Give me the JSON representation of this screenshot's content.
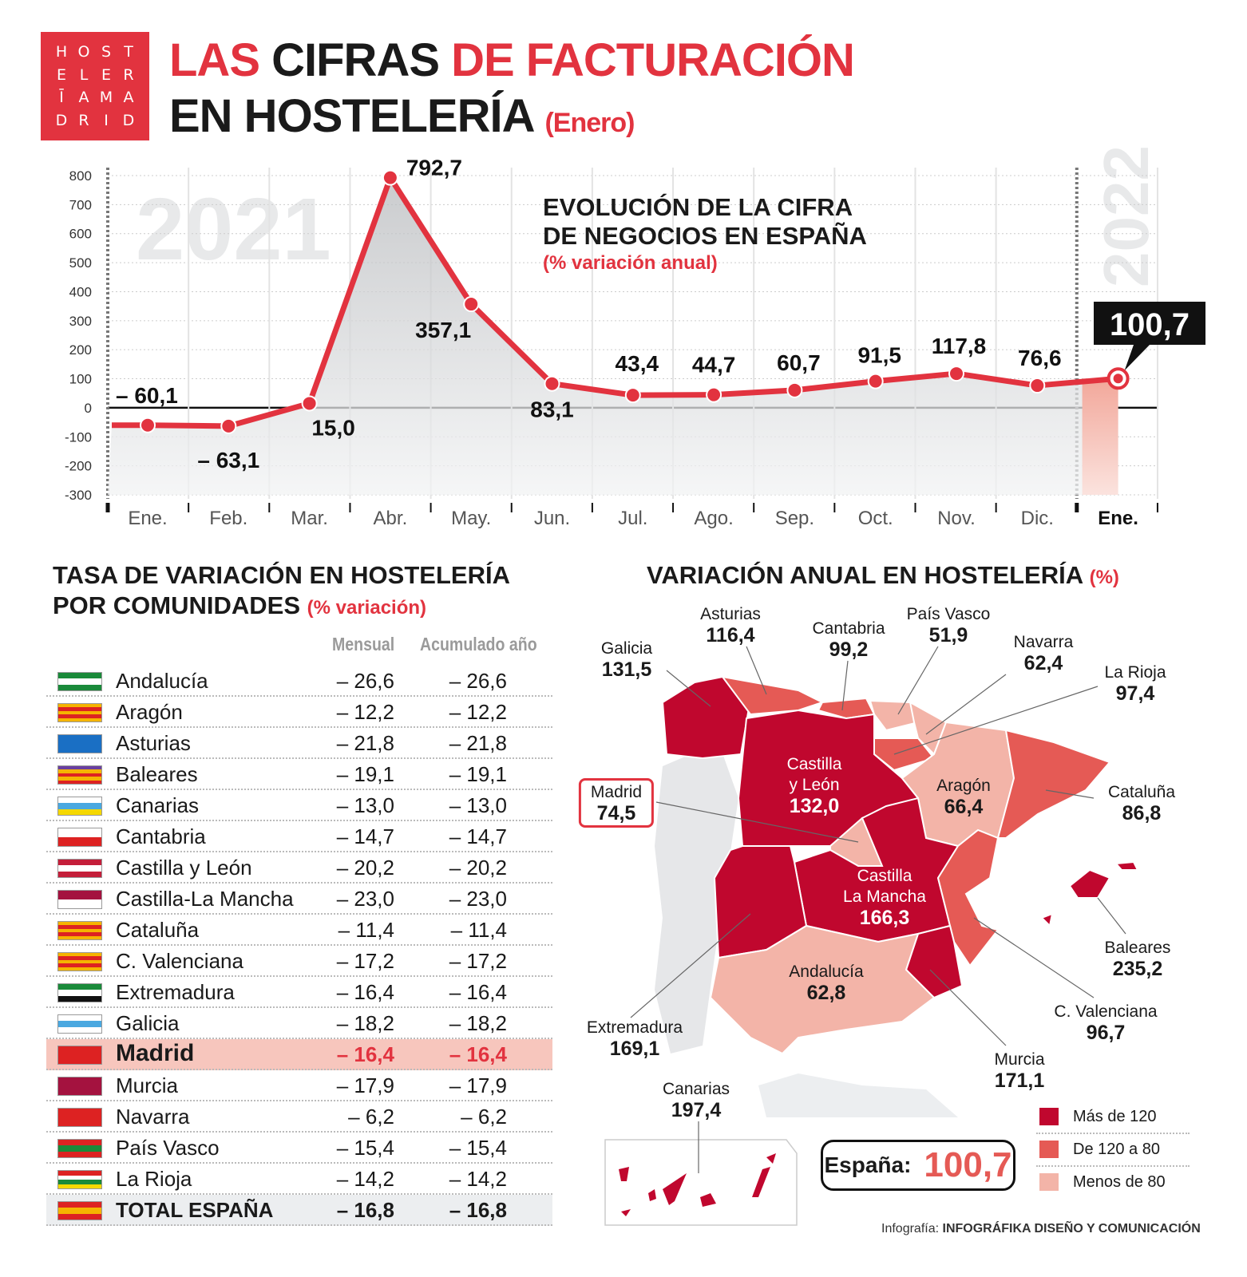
{
  "logo": {
    "letters": [
      "H",
      "O",
      "S",
      "T",
      "E",
      "L",
      "E",
      "R",
      "Ī",
      "A",
      "M",
      "A",
      "D",
      "R",
      "I",
      "D"
    ],
    "text": "HOSTELERĪA MADRID"
  },
  "header": {
    "line1": [
      {
        "text": "LAS ",
        "accent": true
      },
      {
        "text": "CIFRAS ",
        "accent": false
      },
      {
        "text": "DE FACTURACIÓN",
        "accent": true
      }
    ],
    "line2": "EN HOSTELERÍA",
    "line2_suffix": "(Enero)"
  },
  "colors": {
    "accent": "#e2333f",
    "map_high": "#c0072e",
    "map_mid": "#e55a55",
    "map_low": "#f3b4a8",
    "area": "#d8d9db",
    "line": "#e2333f"
  },
  "chart_data": {
    "type": "line",
    "title": "EVOLUCIÓN DE LA CIFRA DE NEGOCIOS EN ESPAÑA",
    "title_lines": [
      "EVOLUCIÓN DE LA CIFRA",
      "DE NEGOCIOS EN ESPAÑA"
    ],
    "subtitle": "(% variación anual)",
    "year_labels": [
      "2021",
      "2022"
    ],
    "categories": [
      "Ene.",
      "Feb.",
      "Mar.",
      "Abr.",
      "May.",
      "Jun.",
      "Jul.",
      "Ago.",
      "Sep.",
      "Oct.",
      "Nov.",
      "Dic.",
      "Ene."
    ],
    "values": [
      -60.1,
      -63.1,
      15.0,
      792.7,
      357.1,
      83.1,
      43.4,
      44.7,
      60.7,
      91.5,
      117.8,
      76.6,
      100.7
    ],
    "data_labels": [
      "– 60,1",
      "– 63,1",
      "15,0",
      "792,7",
      "357,1",
      "83,1",
      "43,4",
      "44,7",
      "60,7",
      "91,5",
      "117,8",
      "76,6",
      "100,7"
    ],
    "yticks": [
      "800",
      "700",
      "600",
      "500",
      "400",
      "300",
      "200",
      "100",
      "0",
      "-100",
      "-200",
      "-300"
    ],
    "ylim": [
      -300,
      800
    ],
    "grid": true,
    "highlight_last": true
  },
  "table": {
    "title_lines": [
      "TASA DE VARIACIÓN EN HOSTELERÍA",
      "POR COMUNIDADES"
    ],
    "title_suffix": "(% variación)",
    "columns": [
      "Mensual",
      "Acumulado año"
    ],
    "rows": [
      {
        "name": "Andalucía",
        "mensual": "– 26,6",
        "acumulado": "– 26,6",
        "flag": [
          "#1a8a3a",
          "#fff",
          "#1a8a3a"
        ]
      },
      {
        "name": "Aragón",
        "mensual": "– 12,2",
        "acumulado": "– 12,2",
        "flag": [
          "#f5b400",
          "#d22",
          "#f5b400",
          "#d22",
          "#f5b400"
        ]
      },
      {
        "name": "Asturias",
        "mensual": "– 21,8",
        "acumulado": "– 21,8",
        "flag": [
          "#1a6fc4",
          "#1a6fc4"
        ]
      },
      {
        "name": "Baleares",
        "mensual": "– 19,1",
        "acumulado": "– 19,1",
        "flag": [
          "#6a3fa0",
          "#f5b400",
          "#d22",
          "#f5b400",
          "#d22"
        ]
      },
      {
        "name": "Canarias",
        "mensual": "– 13,0",
        "acumulado": "– 13,0",
        "flag": [
          "#fff",
          "#4aa8e0",
          "#f5d800"
        ]
      },
      {
        "name": "Cantabria",
        "mensual": "– 14,7",
        "acumulado": "– 14,7",
        "flag": [
          "#fff",
          "#d22"
        ]
      },
      {
        "name": "Castilla y León",
        "mensual": "– 20,2",
        "acumulado": "– 20,2",
        "flag": [
          "#c41e3a",
          "#fff",
          "#c41e3a"
        ]
      },
      {
        "name": "Castilla-La Mancha",
        "mensual": "– 23,0",
        "acumulado": "– 23,0",
        "flag": [
          "#a4123f",
          "#fff"
        ]
      },
      {
        "name": "Cataluña",
        "mensual": "– 11,4",
        "acumulado": "– 11,4",
        "flag": [
          "#f5b400",
          "#d22",
          "#f5b400",
          "#d22",
          "#f5b400"
        ]
      },
      {
        "name": "C. Valenciana",
        "mensual": "– 17,2",
        "acumulado": "– 17,2",
        "flag": [
          "#f5b400",
          "#d22",
          "#f5b400",
          "#d22",
          "#f5b400"
        ]
      },
      {
        "name": "Extremadura",
        "mensual": "– 16,4",
        "acumulado": "– 16,4",
        "flag": [
          "#1a8a3a",
          "#fff",
          "#111"
        ]
      },
      {
        "name": "Galicia",
        "mensual": "– 18,2",
        "acumulado": "– 18,2",
        "flag": [
          "#fff",
          "#4aa8e0",
          "#fff"
        ]
      },
      {
        "name": "Madrid",
        "mensual": "– 16,4",
        "acumulado": "– 16,4",
        "flag": [
          "#d22",
          "#d22"
        ],
        "highlight": true
      },
      {
        "name": "Murcia",
        "mensual": "– 17,9",
        "acumulado": "– 17,9",
        "flag": [
          "#a4123f",
          "#a4123f"
        ]
      },
      {
        "name": "Navarra",
        "mensual": "– 6,2",
        "acumulado": "– 6,2",
        "flag": [
          "#d22",
          "#d22"
        ]
      },
      {
        "name": "País Vasco",
        "mensual": "– 15,4",
        "acumulado": "– 15,4",
        "flag": [
          "#d22",
          "#1a8a3a",
          "#d22"
        ]
      },
      {
        "name": "La Rioja",
        "mensual": "– 14,2",
        "acumulado": "– 14,2",
        "flag": [
          "#d22",
          "#fff",
          "#1a8a3a",
          "#f5d800"
        ]
      },
      {
        "name": "TOTAL ESPAÑA",
        "mensual": "– 16,8",
        "acumulado": "– 16,8",
        "flag": [
          "#d22",
          "#f5b400",
          "#d22"
        ],
        "total": true
      }
    ]
  },
  "map": {
    "title": "VARIACIÓN ANUAL EN HOSTELERÍA",
    "title_suffix": "(%)",
    "regions": [
      {
        "name": "Asturias",
        "value": "116,4"
      },
      {
        "name": "Cantabria",
        "value": "99,2"
      },
      {
        "name": "País Vasco",
        "value": "51,9"
      },
      {
        "name": "Galicia",
        "value": "131,5"
      },
      {
        "name": "Navarra",
        "value": "62,4"
      },
      {
        "name": "La Rioja",
        "value": "97,4"
      },
      {
        "name": "Castilla",
        "name2": "y León",
        "value": "132,0"
      },
      {
        "name": "Madrid",
        "value": "74,5"
      },
      {
        "name": "Aragón",
        "value": "66,4"
      },
      {
        "name": "Cataluña",
        "value": "86,8"
      },
      {
        "name": "Castilla",
        "name2": "La Mancha",
        "value": "166,3"
      },
      {
        "name": "Baleares",
        "value": "235,2"
      },
      {
        "name": "Andalucía",
        "value": "62,8"
      },
      {
        "name": "C. Valenciana",
        "value": "96,7"
      },
      {
        "name": "Extremadura",
        "value": "169,1"
      },
      {
        "name": "Murcia",
        "value": "171,1"
      },
      {
        "name": "Canarias",
        "value": "197,4"
      }
    ],
    "spain_label": "España:",
    "spain_value": "100,7",
    "legend": [
      "Más de 120",
      "De 120 a 80",
      "Menos de 80"
    ]
  },
  "credit": {
    "prefix": "Infografía: ",
    "name": "INFOGRÁFIKA DISEÑO Y COMUNICACIÓN"
  }
}
